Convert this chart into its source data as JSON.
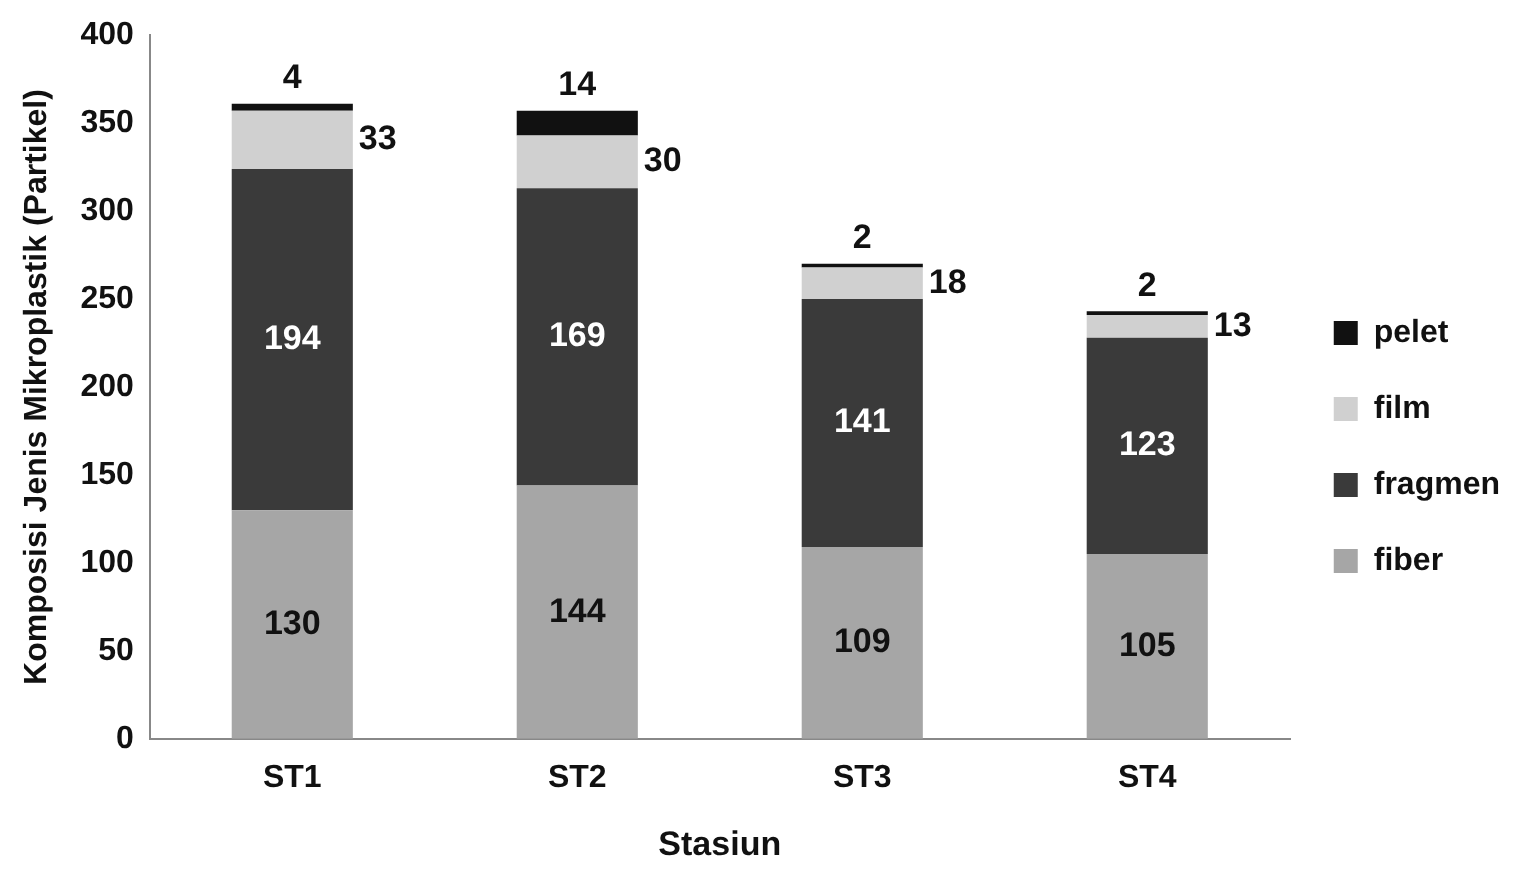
{
  "chart_data": {
    "type": "bar",
    "stacked": true,
    "xlabel": "Stasiun",
    "ylabel": "Komposisi Jenis Mikroplastik (Partikel)",
    "categories": [
      "ST1",
      "ST2",
      "ST3",
      "ST4"
    ],
    "series": [
      {
        "name": "fiber",
        "color": "#a6a6a6",
        "values": [
          130,
          144,
          109,
          105
        ]
      },
      {
        "name": "fragmen",
        "color": "#3a3a3a",
        "values": [
          194,
          169,
          141,
          123
        ]
      },
      {
        "name": "film",
        "color": "#d0d0d0",
        "values": [
          33,
          30,
          18,
          13
        ]
      },
      {
        "name": "pelet",
        "color": "#111111",
        "values": [
          4,
          14,
          2,
          2
        ]
      }
    ],
    "ylim": [
      0,
      400
    ],
    "yticks": [
      0,
      50,
      100,
      150,
      200,
      250,
      300,
      350,
      400
    ],
    "grid": false,
    "legend": "right",
    "data_labels": true
  }
}
